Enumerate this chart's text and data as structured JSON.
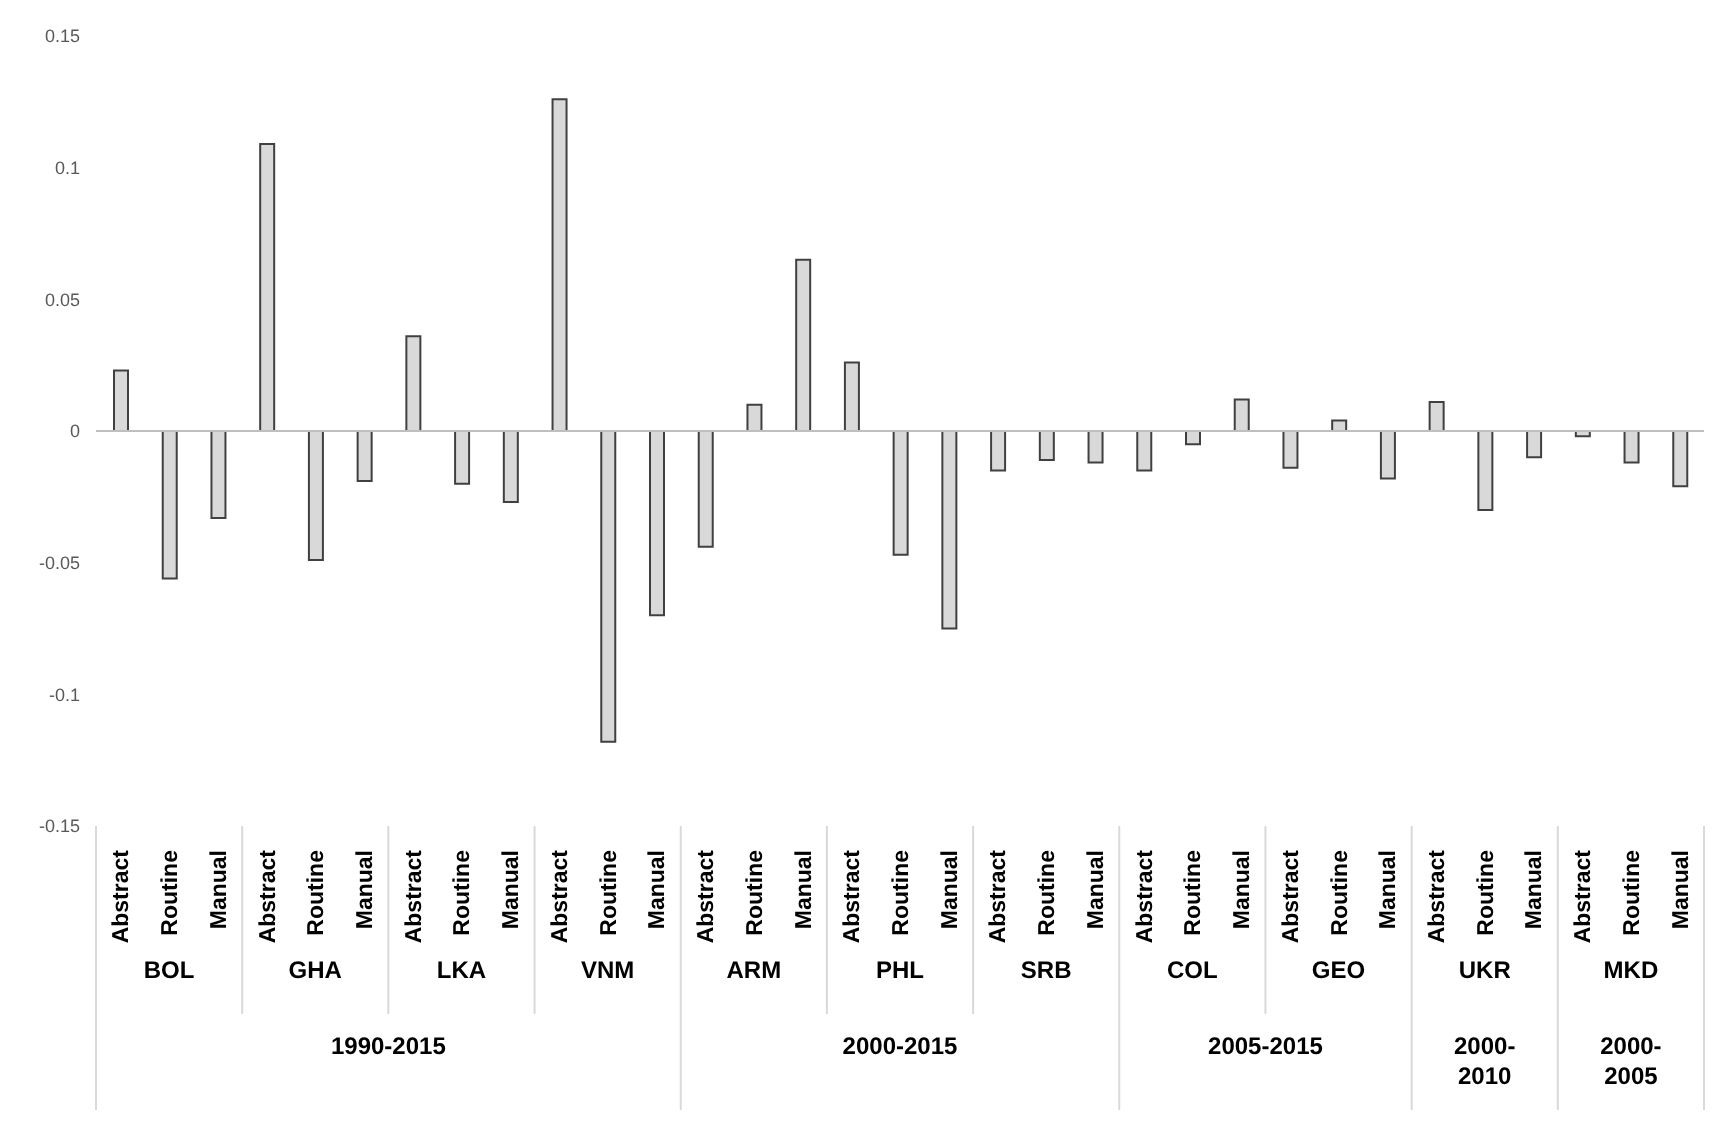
{
  "chart_data": {
    "type": "bar",
    "categories": [
      "Abstract",
      "Routine",
      "Manual",
      "Abstract",
      "Routine",
      "Manual",
      "Abstract",
      "Routine",
      "Manual",
      "Abstract",
      "Routine",
      "Manual",
      "Abstract",
      "Routine",
      "Manual",
      "Abstract",
      "Routine",
      "Manual",
      "Abstract",
      "Routine",
      "Manual",
      "Abstract",
      "Routine",
      "Manual",
      "Abstract",
      "Routine",
      "Manual",
      "Abstract",
      "Routine",
      "Manual",
      "Abstract",
      "Routine",
      "Manual"
    ],
    "values": [
      0.023,
      -0.056,
      -0.033,
      0.109,
      -0.049,
      -0.019,
      0.036,
      -0.02,
      -0.027,
      0.126,
      -0.118,
      -0.07,
      -0.044,
      0.01,
      0.065,
      0.026,
      -0.047,
      -0.075,
      -0.015,
      -0.011,
      -0.012,
      -0.015,
      -0.005,
      0.012,
      -0.014,
      0.004,
      -0.018,
      0.011,
      -0.03,
      -0.01,
      -0.002,
      -0.012,
      -0.021
    ],
    "color": "#d9d9d9",
    "ylim": [
      -0.15,
      0.15
    ],
    "yticks": [
      -0.15,
      -0.1,
      -0.05,
      0,
      0.05,
      0.1,
      0.15
    ],
    "grid": false,
    "legend": false,
    "ref_lines": [
      {
        "axis": "y",
        "value": 0,
        "color": "#bfbfbf"
      }
    ],
    "annotations": [
      "BOL",
      "GHA",
      "LKA",
      "VNM",
      "ARM",
      "PHL",
      "SRB",
      "COL",
      "GEO",
      "UKR",
      "MKD",
      "1990-2015",
      "2000-2015",
      "2005-2015",
      "2000-2010",
      "2000-2005"
    ]
  }
}
